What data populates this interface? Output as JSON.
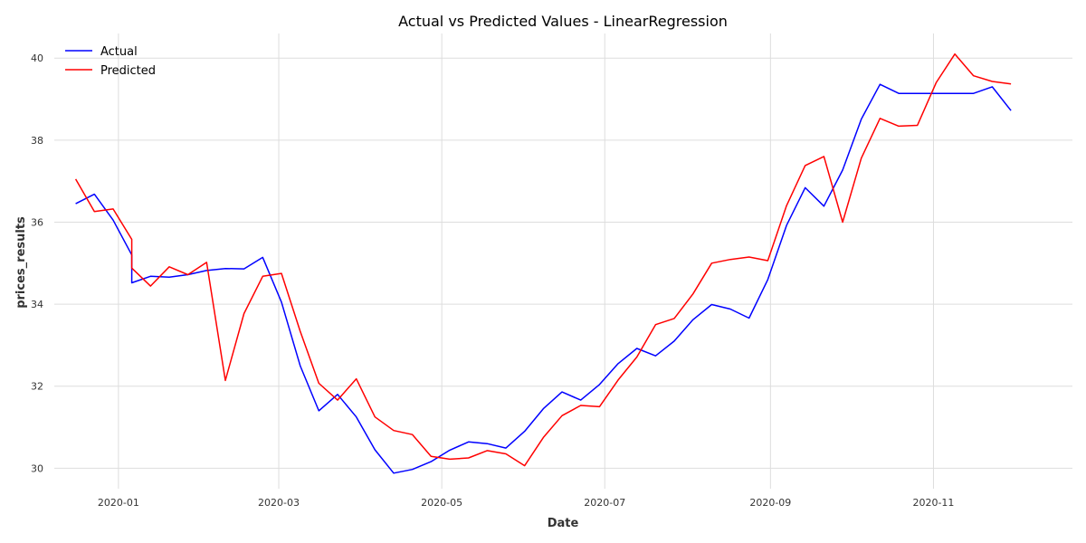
{
  "chart_data": {
    "type": "line",
    "title": "Actual vs Predicted Values - LinearRegression",
    "xlabel": "Date",
    "ylabel": "prices_results",
    "legend_position": "top-left",
    "grid": true,
    "xlim": [
      "2019-12-08",
      "2020-12-23"
    ],
    "ylim": [
      29.5,
      40.6
    ],
    "x_ticks": [
      "2020-01",
      "2020-03",
      "2020-05",
      "2020-07",
      "2020-09",
      "2020-11"
    ],
    "y_ticks": [
      30,
      32,
      34,
      36,
      38,
      40
    ],
    "series": [
      {
        "name": "Actual",
        "color": "#0000ff",
        "points": [
          [
            "2019-12-16",
            36.45
          ],
          [
            "2019-12-23",
            36.68
          ],
          [
            "2019-12-30",
            36.05
          ],
          [
            "2020-01-06",
            35.2
          ],
          [
            "2020-01-06",
            34.52
          ],
          [
            "2020-01-13",
            34.68
          ],
          [
            "2020-01-20",
            34.66
          ],
          [
            "2020-01-27",
            34.72
          ],
          [
            "2020-02-03",
            34.82
          ],
          [
            "2020-02-10",
            34.87
          ],
          [
            "2020-02-17",
            34.86
          ],
          [
            "2020-02-24",
            35.14
          ],
          [
            "2020-03-02",
            34.05
          ],
          [
            "2020-03-09",
            32.5
          ],
          [
            "2020-03-16",
            31.4
          ],
          [
            "2020-03-23",
            31.8
          ],
          [
            "2020-03-30",
            31.25
          ],
          [
            "2020-04-06",
            30.45
          ],
          [
            "2020-04-13",
            29.88
          ],
          [
            "2020-04-20",
            29.97
          ],
          [
            "2020-04-27",
            30.16
          ],
          [
            "2020-05-04",
            30.44
          ],
          [
            "2020-05-11",
            30.64
          ],
          [
            "2020-05-18",
            30.6
          ],
          [
            "2020-05-25",
            30.49
          ],
          [
            "2020-06-01",
            30.9
          ],
          [
            "2020-06-08",
            31.45
          ],
          [
            "2020-06-15",
            31.86
          ],
          [
            "2020-06-22",
            31.66
          ],
          [
            "2020-06-29",
            32.04
          ],
          [
            "2020-07-06",
            32.55
          ],
          [
            "2020-07-13",
            32.92
          ],
          [
            "2020-07-20",
            32.74
          ],
          [
            "2020-07-27",
            33.1
          ],
          [
            "2020-08-03",
            33.62
          ],
          [
            "2020-08-10",
            33.99
          ],
          [
            "2020-08-17",
            33.88
          ],
          [
            "2020-08-24",
            33.66
          ],
          [
            "2020-08-31",
            34.6
          ],
          [
            "2020-09-07",
            35.92
          ],
          [
            "2020-09-14",
            36.84
          ],
          [
            "2020-09-21",
            36.39
          ],
          [
            "2020-09-28",
            37.27
          ],
          [
            "2020-10-05",
            38.51
          ],
          [
            "2020-10-12",
            39.36
          ],
          [
            "2020-10-19",
            39.14
          ],
          [
            "2020-10-26",
            39.14
          ],
          [
            "2020-11-02",
            39.14
          ],
          [
            "2020-11-09",
            39.14
          ],
          [
            "2020-11-16",
            39.14
          ],
          [
            "2020-11-23",
            39.3
          ],
          [
            "2020-11-30",
            38.72
          ]
        ]
      },
      {
        "name": "Predicted",
        "color": "#ff0000",
        "points": [
          [
            "2019-12-16",
            37.05
          ],
          [
            "2019-12-23",
            36.26
          ],
          [
            "2019-12-30",
            36.32
          ],
          [
            "2020-01-06",
            35.58
          ],
          [
            "2020-01-06",
            34.88
          ],
          [
            "2020-01-13",
            34.44
          ],
          [
            "2020-01-20",
            34.91
          ],
          [
            "2020-01-27",
            34.72
          ],
          [
            "2020-02-03",
            35.02
          ],
          [
            "2020-02-10",
            32.14
          ],
          [
            "2020-02-17",
            33.77
          ],
          [
            "2020-02-24",
            34.68
          ],
          [
            "2020-03-02",
            34.75
          ],
          [
            "2020-03-09",
            33.34
          ],
          [
            "2020-03-16",
            32.07
          ],
          [
            "2020-03-23",
            31.66
          ],
          [
            "2020-03-30",
            32.18
          ],
          [
            "2020-04-06",
            31.25
          ],
          [
            "2020-04-13",
            30.92
          ],
          [
            "2020-04-20",
            30.82
          ],
          [
            "2020-04-27",
            30.29
          ],
          [
            "2020-05-04",
            30.22
          ],
          [
            "2020-05-11",
            30.25
          ],
          [
            "2020-05-18",
            30.43
          ],
          [
            "2020-05-25",
            30.35
          ],
          [
            "2020-06-01",
            30.06
          ],
          [
            "2020-06-08",
            30.75
          ],
          [
            "2020-06-15",
            31.28
          ],
          [
            "2020-06-22",
            31.53
          ],
          [
            "2020-06-29",
            31.5
          ],
          [
            "2020-07-06",
            32.15
          ],
          [
            "2020-07-13",
            32.71
          ],
          [
            "2020-07-20",
            33.5
          ],
          [
            "2020-07-27",
            33.65
          ],
          [
            "2020-08-03",
            34.25
          ],
          [
            "2020-08-10",
            35.0
          ],
          [
            "2020-08-17",
            35.09
          ],
          [
            "2020-08-24",
            35.15
          ],
          [
            "2020-08-31",
            35.06
          ],
          [
            "2020-09-07",
            36.4
          ],
          [
            "2020-09-14",
            37.38
          ],
          [
            "2020-09-21",
            37.6
          ],
          [
            "2020-09-28",
            36.0
          ],
          [
            "2020-10-05",
            37.56
          ],
          [
            "2020-10-12",
            38.53
          ],
          [
            "2020-10-19",
            38.34
          ],
          [
            "2020-10-26",
            38.36
          ],
          [
            "2020-11-02",
            39.4
          ],
          [
            "2020-11-09",
            40.1
          ],
          [
            "2020-11-16",
            39.57
          ],
          [
            "2020-11-23",
            39.43
          ],
          [
            "2020-11-30",
            39.37
          ]
        ]
      }
    ]
  }
}
